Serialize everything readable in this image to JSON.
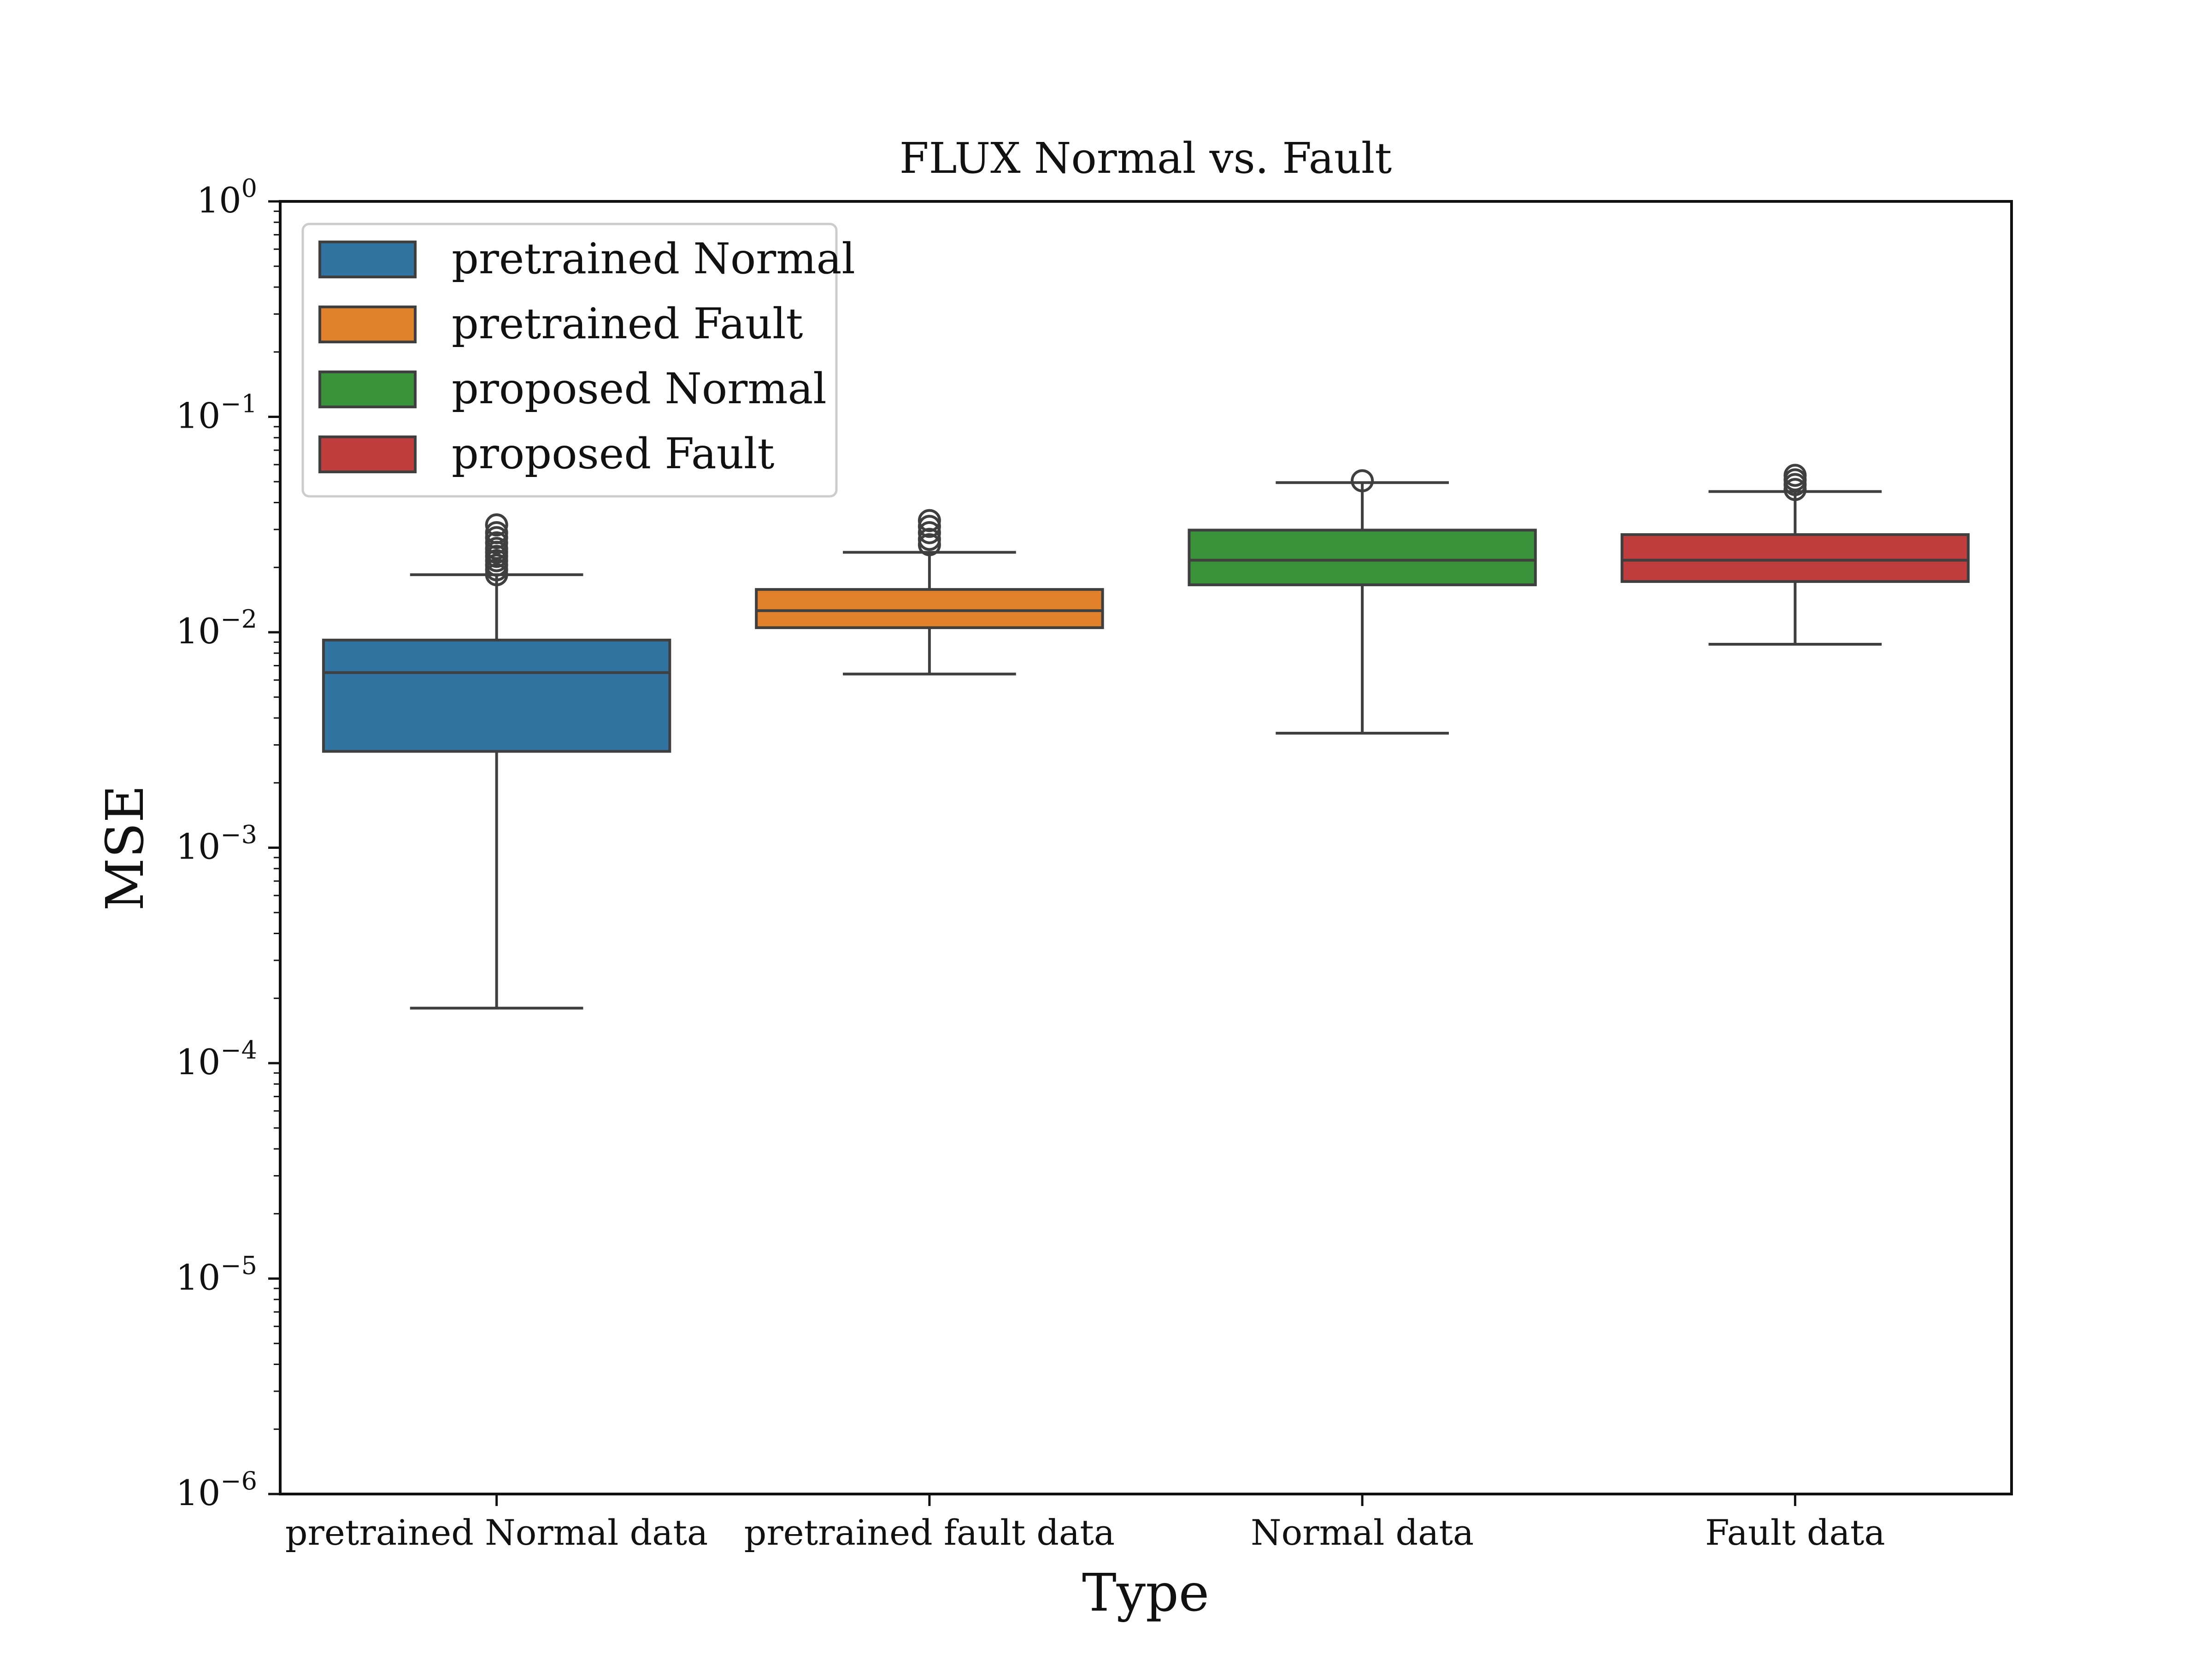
{
  "chart_data": {
    "type": "box",
    "title": "FLUX Normal vs. Fault",
    "xlabel": "Type",
    "ylabel": "MSE",
    "yscale": "log",
    "ylim": [
      1e-06,
      1
    ],
    "grid": false,
    "legend_position": "top-left",
    "categories": [
      "pretrained Normal data",
      "pretrained fault data",
      "Normal data",
      "Fault data"
    ],
    "yticks": [
      {
        "base": "10",
        "exp": "0"
      },
      {
        "base": "10",
        "exp": "−1"
      },
      {
        "base": "10",
        "exp": "−2"
      },
      {
        "base": "10",
        "exp": "−3"
      },
      {
        "base": "10",
        "exp": "−4"
      },
      {
        "base": "10",
        "exp": "−5"
      },
      {
        "base": "10",
        "exp": "−6"
      }
    ],
    "series": [
      {
        "name": "pretrained Normal",
        "color": "#3274a1",
        "category": "pretrained Normal data",
        "whisker_low": 0.00018,
        "q1": 0.0028,
        "median": 0.0065,
        "q3": 0.0092,
        "whisker_high": 0.0185,
        "outliers": [
          0.0185,
          0.0195,
          0.0205,
          0.0215,
          0.0225,
          0.0235,
          0.0245,
          0.026,
          0.0275,
          0.029,
          0.0315
        ]
      },
      {
        "name": "pretrained Fault",
        "color": "#e1812c",
        "category": "pretrained fault data",
        "whisker_low": 0.0064,
        "q1": 0.0105,
        "median": 0.0126,
        "q3": 0.0158,
        "whisker_high": 0.0235,
        "outliers": [
          0.0255,
          0.027,
          0.029,
          0.031,
          0.033
        ]
      },
      {
        "name": "proposed Normal",
        "color": "#3a923a",
        "category": "Normal data",
        "whisker_low": 0.0034,
        "q1": 0.0166,
        "median": 0.0216,
        "q3": 0.0298,
        "whisker_high": 0.0495,
        "outliers": [
          0.0505
        ]
      },
      {
        "name": "proposed Fault",
        "color": "#c03d3e",
        "category": "Fault data",
        "whisker_low": 0.0088,
        "q1": 0.0172,
        "median": 0.0216,
        "q3": 0.0284,
        "whisker_high": 0.045,
        "outliers": [
          0.046,
          0.0485,
          0.051,
          0.0535
        ]
      }
    ]
  }
}
